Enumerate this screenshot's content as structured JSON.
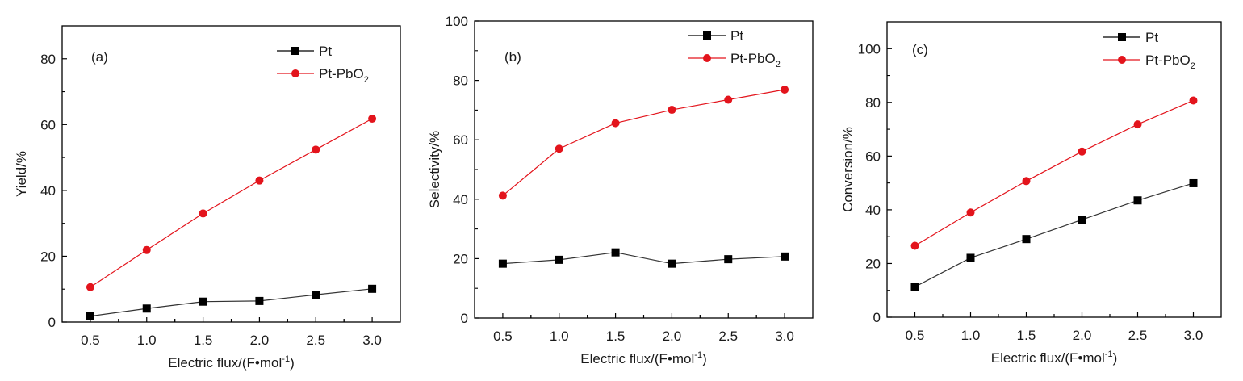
{
  "chart_data": [
    {
      "type": "line",
      "panel_label": "(a)",
      "xlabel": "Electric flux/(F•mol",
      "xlabel_sup": "-1",
      "xlabel_end": ")",
      "ylabel": "Yield/%",
      "x": [
        0.5,
        1.0,
        1.5,
        2.0,
        2.5,
        3.0
      ],
      "x_tick_labels": [
        "0.5",
        "1.0",
        "1.5",
        "2.0",
        "2.5",
        "3.0"
      ],
      "xlim": [
        0.25,
        3.25
      ],
      "ylim": [
        0,
        90
      ],
      "y_ticks": [
        0,
        20,
        40,
        60,
        80
      ],
      "y_tick_labels": [
        "0",
        "20",
        "40",
        "60",
        "80"
      ],
      "legend_position": "top-right",
      "grid": false,
      "series": [
        {
          "name": "Pt",
          "legend_main": "Pt",
          "legend_sub": "",
          "marker": "square",
          "color": "#000000",
          "values": [
            1.8,
            4.1,
            6.2,
            6.4,
            8.3,
            10.1
          ]
        },
        {
          "name": "Pt-PbO2",
          "legend_main": "Pt-PbO",
          "legend_sub": "2",
          "marker": "circle",
          "color": "#e3141c",
          "values": [
            10.6,
            21.9,
            33.0,
            43.0,
            52.4,
            61.8
          ]
        }
      ]
    },
    {
      "type": "line",
      "panel_label": "(b)",
      "xlabel": "Electric flux/(F•mol",
      "xlabel_sup": "-1",
      "xlabel_end": ")",
      "ylabel": "Selectivity/%",
      "x": [
        0.5,
        1.0,
        1.5,
        2.0,
        2.5,
        3.0
      ],
      "x_tick_labels": [
        "0.5",
        "1.0",
        "1.5",
        "2.0",
        "2.5",
        "3.0"
      ],
      "xlim": [
        0.25,
        3.25
      ],
      "ylim": [
        0,
        100
      ],
      "y_ticks": [
        0,
        20,
        40,
        60,
        80,
        100
      ],
      "y_tick_labels": [
        "0",
        "20",
        "40",
        "60",
        "80",
        "100"
      ],
      "legend_position": "top-right",
      "grid": false,
      "series": [
        {
          "name": "Pt",
          "legend_main": "Pt",
          "legend_sub": "",
          "marker": "square",
          "color": "#000000",
          "values": [
            18.3,
            19.6,
            22.1,
            18.3,
            19.8,
            20.7
          ]
        },
        {
          "name": "Pt-PbO2",
          "legend_main": "Pt-PbO",
          "legend_sub": "2",
          "marker": "circle",
          "color": "#e3141c",
          "values": [
            41.2,
            57.0,
            65.6,
            70.1,
            73.5,
            76.9
          ]
        }
      ]
    },
    {
      "type": "line",
      "panel_label": "(c)",
      "xlabel": "Electric flux/(F•mol",
      "xlabel_sup": "-1",
      "xlabel_end": ")",
      "ylabel": "Conversion/%",
      "x": [
        0.5,
        1.0,
        1.5,
        2.0,
        2.5,
        3.0
      ],
      "x_tick_labels": [
        "0.5",
        "1.0",
        "1.5",
        "2.0",
        "2.5",
        "3.0"
      ],
      "xlim": [
        0.25,
        3.25
      ],
      "ylim": [
        0,
        110
      ],
      "y_ticks": [
        0,
        20,
        40,
        60,
        80,
        100
      ],
      "y_tick_labels": [
        "0",
        "20",
        "40",
        "60",
        "80",
        "100"
      ],
      "legend_position": "top-right",
      "grid": false,
      "series": [
        {
          "name": "Pt",
          "legend_main": "Pt",
          "legend_sub": "",
          "marker": "square",
          "color": "#000000",
          "values": [
            11.3,
            22.1,
            29.1,
            36.3,
            43.5,
            49.9
          ]
        },
        {
          "name": "Pt-PbO2",
          "legend_main": "Pt-PbO",
          "legend_sub": "2",
          "marker": "circle",
          "color": "#e3141c",
          "values": [
            26.6,
            39.0,
            50.7,
            61.7,
            71.8,
            80.7
          ]
        }
      ]
    }
  ]
}
